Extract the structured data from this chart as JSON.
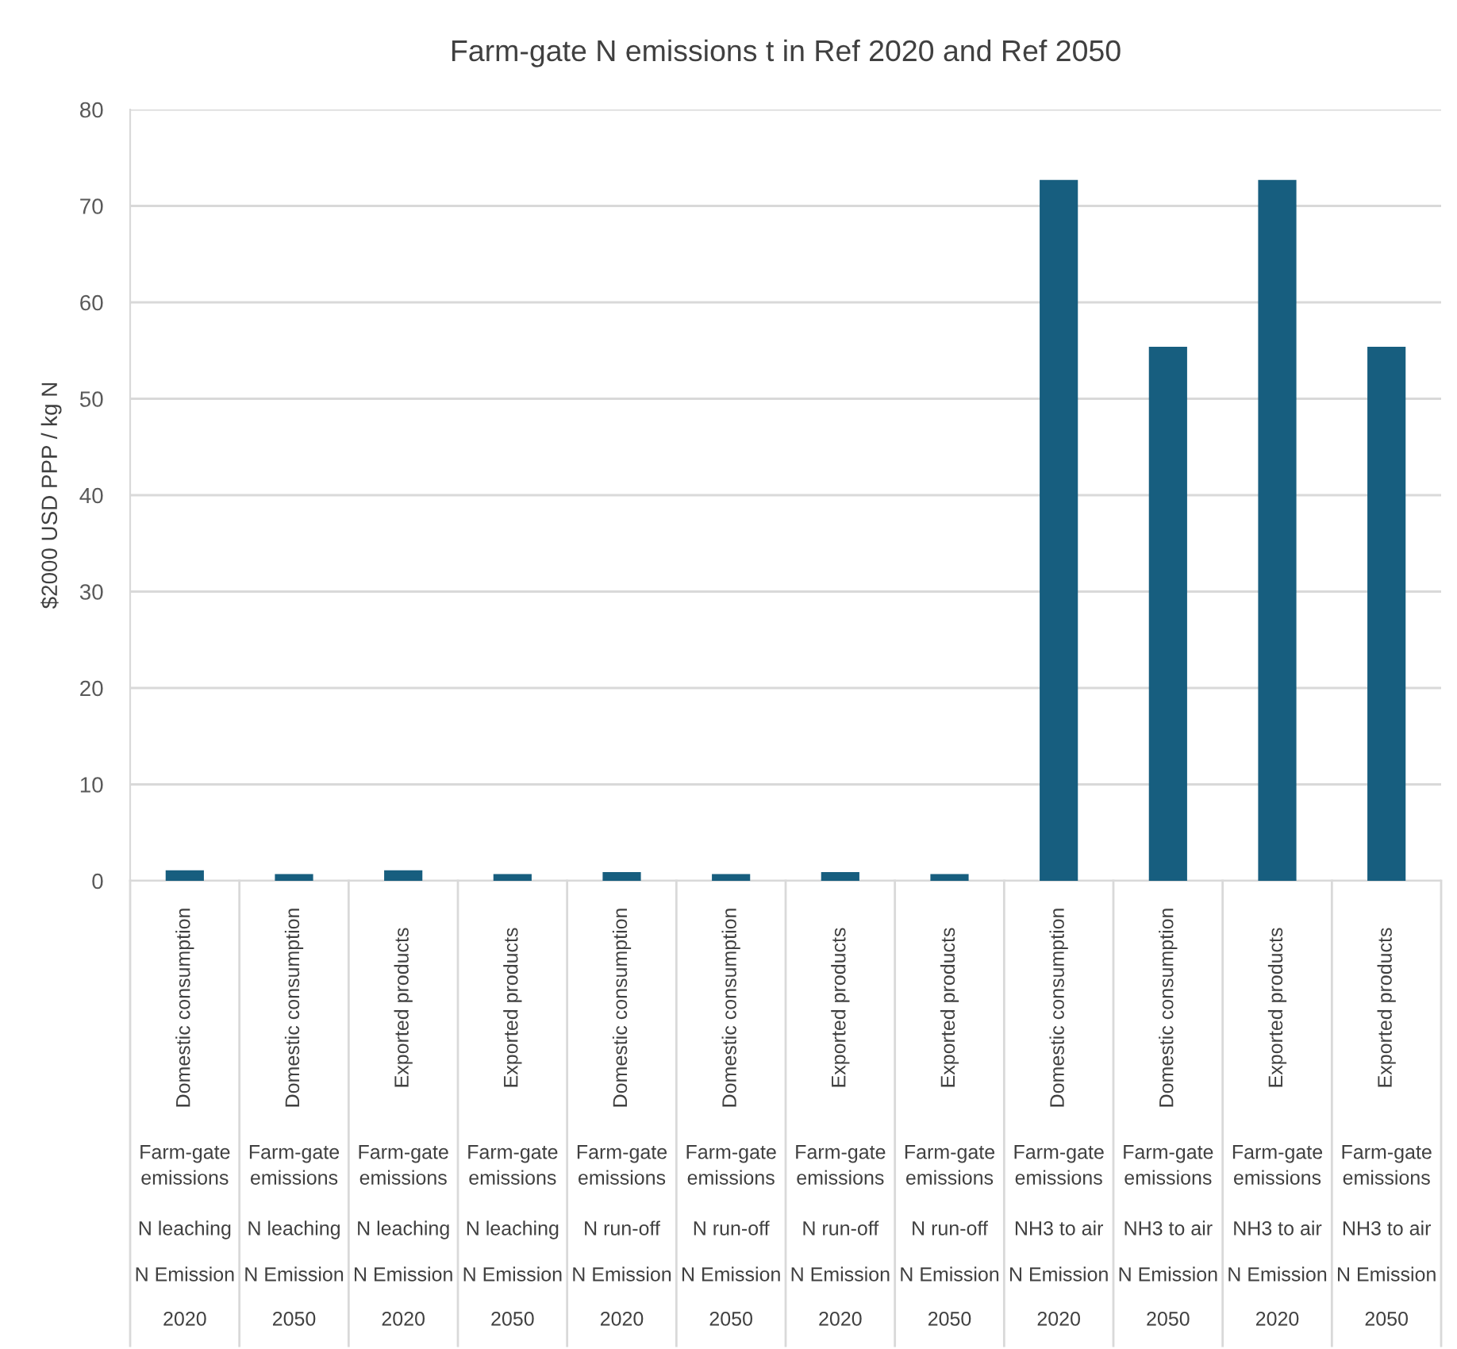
{
  "chart_data": {
    "type": "bar",
    "title": "Farm-gate N emissions t in Ref 2020 and Ref 2050",
    "ylabel": "$2000 USD PPP / kg N",
    "categories": [
      "Domestic consumption\nFarm-gate emissions\nN leaching\nN Emission\n2020",
      "Domestic consumption\nFarm-gate emissions\nN leaching\nN Emission\n2050",
      "Exported products\nFarm-gate emissions\nN leaching\nN Emission\n2020",
      "Exported products\nFarm-gate emissions\nN leaching\nN Emission\n2050",
      "Domestic consumption\nFarm-gate emissions\nN run-off\nN Emission\n2020",
      "Domestic consumption\nFarm-gate emissions\nN run-off\nN Emission\n2050",
      "Exported products\nFarm-gate emissions\nN run-off\nN Emission\n2020",
      "Exported products\nFarm-gate emissions\nN run-off\nN Emission\n2050",
      "Domestic consumption\nFarm-gate emissions\nNH3 to air\nN Emission\n2020",
      "Domestic consumption\nFarm-gate emissions\nNH3 to air\nN Emission\n2050",
      "Exported products\nFarm-gate emissions\nNH3 to air\nN Emission\n2020",
      "Exported products\nFarm-gate emissions\nNH3 to air\nN Emission\n2050"
    ],
    "values": [
      1.1,
      0.7,
      1.1,
      0.7,
      0.9,
      0.7,
      0.9,
      0.7,
      72.7,
      55.4,
      72.7,
      55.4
    ],
    "color": "#175e7f",
    "ylim": [
      0,
      80
    ],
    "yticks": [
      0,
      10,
      20,
      30,
      40,
      50,
      60,
      70,
      80
    ],
    "grid": "y",
    "legend": false
  }
}
